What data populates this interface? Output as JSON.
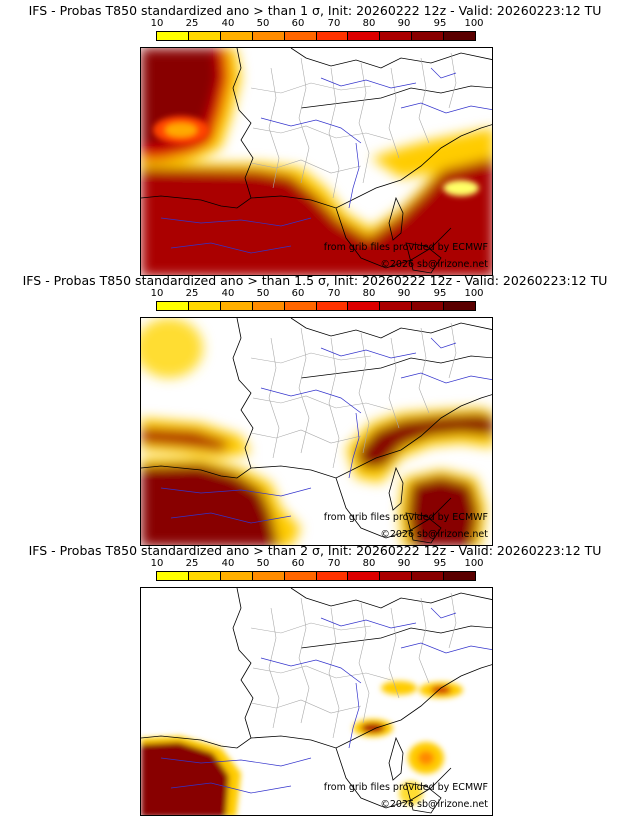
{
  "colorbar": {
    "ticks": [
      "10",
      "25",
      "40",
      "50",
      "60",
      "70",
      "80",
      "90",
      "95",
      "100"
    ],
    "colors": [
      "#ffff00",
      "#ffd700",
      "#ffb000",
      "#ff8c00",
      "#ff6600",
      "#ff3300",
      "#dd0000",
      "#aa0000",
      "#880000",
      "#5a0000"
    ]
  },
  "panels": [
    {
      "title": "IFS - Probas T850  standardized ano > than 1 σ, Init: 20260222 12z - Valid: 20260223:12 TU",
      "credit_source": "from grib files provided by ECMWF",
      "credit_copyright": "©2026 sb@irizone.net"
    },
    {
      "title": "IFS - Probas T850  standardized ano > than 1.5 σ, Init: 20260222 12z - Valid: 20260223:12 TU",
      "credit_source": "from grib files provided by ECMWF",
      "credit_copyright": "©2026 sb@irizone.net"
    },
    {
      "title": "IFS - Probas T850  standardized ano > than 2 σ, Init: 20260222 12z - Valid: 20260223:12 TU",
      "credit_source": "from grib files provided by ECMWF",
      "credit_copyright": "©2026 sb@irizone.net"
    }
  ]
}
